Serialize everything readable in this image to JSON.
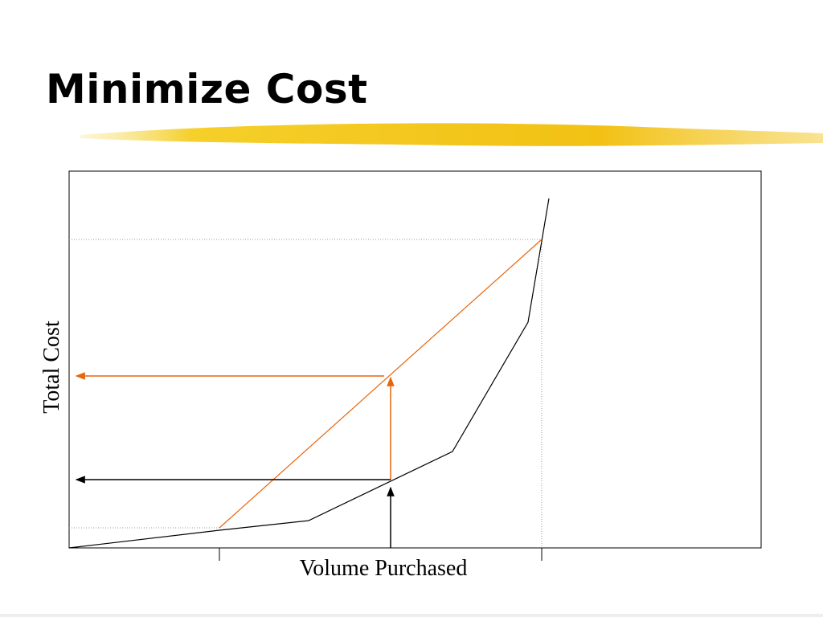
{
  "title": "Minimize Cost",
  "diagram": {
    "y_axis_label": "Total Cost",
    "x_axis_label": "Volume Purchased"
  }
}
